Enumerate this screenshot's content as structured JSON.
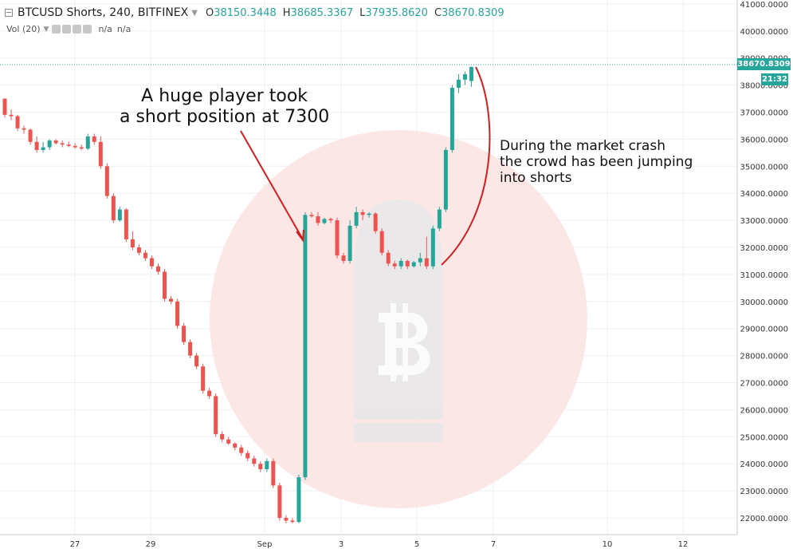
{
  "header": {
    "symbol": "BTCUSD Shorts, 240, BITFINEX",
    "o_label": "O",
    "o_value": "38150.3448",
    "h_label": "H",
    "h_value": "38685.3367",
    "l_label": "L",
    "l_value": "37935.8620",
    "c_label": "C",
    "c_value": "38670.8309",
    "icon": "collapse-icon"
  },
  "volume": {
    "label": "Vol (20)",
    "value1": "n/a",
    "value2": "n/a"
  },
  "annotations": {
    "left_line1": "A huge player took",
    "left_line2": "a short position at 7300",
    "right_line1": "During the market crash",
    "right_line2": "the crowd has been jumping",
    "right_line3": "into shorts"
  },
  "price_tag": "38670.8309",
  "time_tag": "21:32",
  "colors": {
    "up": "#26a69a",
    "down": "#ef5350",
    "watermark": "#fbe3e3",
    "annotation": "#d11f1f"
  },
  "chart_data": {
    "type": "candlestick",
    "title": "BTCUSD Shorts, 240, BITFINEX",
    "xlabel": "",
    "ylabel": "",
    "ylim": [
      21500,
      41000
    ],
    "y_ticks": [
      "22000.0000",
      "23000.0000",
      "24000.0000",
      "25000.0000",
      "26000.0000",
      "27000.0000",
      "28000.0000",
      "29000.0000",
      "30000.0000",
      "31000.0000",
      "32000.0000",
      "33000.0000",
      "34000.0000",
      "35000.0000",
      "36000.0000",
      "37000.0000",
      "38000.0000",
      "39000.0000",
      "40000.0000",
      "41000.0000"
    ],
    "x_ticks": [
      "27",
      "29",
      "Sep",
      "3",
      "5",
      "7",
      "10",
      "12"
    ],
    "last_price": 38670.8309,
    "candles": [
      [
        37500,
        37500,
        36800,
        36900
      ],
      [
        36900,
        37100,
        36700,
        36850
      ],
      [
        36850,
        36900,
        36300,
        36400
      ],
      [
        36400,
        36500,
        36200,
        36350
      ],
      [
        36350,
        36400,
        35800,
        35900
      ],
      [
        35900,
        36100,
        35500,
        35600
      ],
      [
        35600,
        35900,
        35500,
        35700
      ],
      [
        35700,
        36000,
        35600,
        35950
      ],
      [
        35950,
        36000,
        35800,
        35850
      ],
      [
        35850,
        35950,
        35700,
        35800
      ],
      [
        35800,
        35900,
        35700,
        35750
      ],
      [
        35750,
        35850,
        35650,
        35700
      ],
      [
        35700,
        35800,
        35600,
        35650
      ],
      [
        35650,
        36200,
        35600,
        36100
      ],
      [
        36100,
        36200,
        35800,
        35900
      ],
      [
        35900,
        36100,
        34900,
        35000
      ],
      [
        35000,
        35100,
        33800,
        33900
      ],
      [
        33900,
        34000,
        32900,
        33000
      ],
      [
        33000,
        33500,
        32950,
        33400
      ],
      [
        33400,
        33450,
        32200,
        32300
      ],
      [
        32300,
        32600,
        31900,
        32000
      ],
      [
        32000,
        32100,
        31700,
        31800
      ],
      [
        31800,
        31900,
        31500,
        31600
      ],
      [
        31600,
        31700,
        31200,
        31300
      ],
      [
        31300,
        31400,
        31000,
        31100
      ],
      [
        31100,
        31200,
        30000,
        30100
      ],
      [
        30100,
        30200,
        29900,
        30000
      ],
      [
        30000,
        30100,
        29000,
        29100
      ],
      [
        29100,
        29200,
        28400,
        28500
      ],
      [
        28500,
        28600,
        27900,
        28000
      ],
      [
        28000,
        28100,
        27500,
        27600
      ],
      [
        27600,
        27700,
        26600,
        26700
      ],
      [
        26700,
        26800,
        26400,
        26500
      ],
      [
        26500,
        26600,
        25000,
        25100
      ],
      [
        25100,
        25200,
        24800,
        24900
      ],
      [
        24900,
        25000,
        24700,
        24750
      ],
      [
        24750,
        24800,
        24500,
        24600
      ],
      [
        24600,
        24700,
        24300,
        24400
      ],
      [
        24400,
        24500,
        24100,
        24200
      ],
      [
        24200,
        24300,
        23900,
        24000
      ],
      [
        24000,
        24100,
        23700,
        23800
      ],
      [
        23800,
        24200,
        23700,
        24100
      ],
      [
        24100,
        24200,
        23100,
        23200
      ],
      [
        23200,
        23300,
        21900,
        22000
      ],
      [
        22000,
        22100,
        21800,
        21900
      ],
      [
        21900,
        22000,
        21800,
        21850
      ],
      [
        21850,
        23600,
        21800,
        23500
      ],
      [
        23500,
        33300,
        23400,
        33200
      ],
      [
        33200,
        33300,
        33100,
        33150
      ],
      [
        33150,
        33300,
        32800,
        32900
      ],
      [
        32900,
        33100,
        32850,
        33050
      ],
      [
        33050,
        33100,
        32900,
        33000
      ],
      [
        33000,
        33100,
        31600,
        31700
      ],
      [
        31700,
        31800,
        31400,
        31500
      ],
      [
        31500,
        33000,
        31400,
        32800
      ],
      [
        32800,
        33500,
        32700,
        33300
      ],
      [
        33300,
        33400,
        33000,
        33200
      ],
      [
        33200,
        33300,
        33100,
        33250
      ],
      [
        33250,
        33300,
        32500,
        32600
      ],
      [
        32600,
        32700,
        31700,
        31800
      ],
      [
        31800,
        31900,
        31300,
        31400
      ],
      [
        31400,
        31500,
        31200,
        31300
      ],
      [
        31300,
        31600,
        31200,
        31500
      ],
      [
        31500,
        31550,
        31200,
        31300
      ],
      [
        31300,
        31500,
        31250,
        31450
      ],
      [
        31450,
        31800,
        31300,
        31600
      ],
      [
        31600,
        32400,
        31200,
        31300
      ],
      [
        31300,
        32800,
        31200,
        32700
      ],
      [
        32700,
        33500,
        32600,
        33400
      ],
      [
        33400,
        35700,
        33300,
        35600
      ],
      [
        35600,
        38000,
        35500,
        37900
      ],
      [
        37900,
        38400,
        37700,
        38200
      ],
      [
        38200,
        38500,
        38000,
        38400
      ],
      [
        38150,
        38685,
        37936,
        38671
      ]
    ]
  }
}
